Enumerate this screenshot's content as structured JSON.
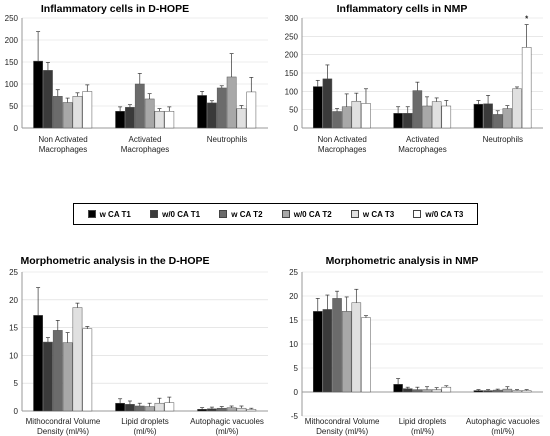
{
  "colors": [
    "#000000",
    "#3a3a3a",
    "#6b6b6b",
    "#a8a8a8",
    "#e0e0e0",
    "#ffffff"
  ],
  "legend": [
    "w CA T1",
    "w/0 CA T1",
    "w CA T2",
    "w/0 CA T2",
    "w CA T3",
    "w/0 CA T3"
  ],
  "chart_data": [
    {
      "type": "bar",
      "title": "Inflammatory cells in D-HOPE",
      "categories": [
        [
          "Non Activated",
          "Macrophages"
        ],
        [
          "Activated",
          "Macrophages"
        ],
        [
          "Neutrophils"
        ]
      ],
      "ylim": [
        0,
        250
      ],
      "yticks": [
        0,
        50,
        100,
        150,
        200,
        250
      ],
      "grid": true,
      "series": [
        {
          "name": "w CA T1",
          "values": [
            152,
            38,
            74
          ],
          "errors": [
            67,
            10,
            9
          ]
        },
        {
          "name": "w/0 CA T1",
          "values": [
            131,
            47,
            57
          ],
          "errors": [
            18,
            6,
            5
          ]
        },
        {
          "name": "w CA T2",
          "values": [
            72,
            100,
            91
          ],
          "errors": [
            15,
            24,
            5
          ]
        },
        {
          "name": "w/0 CA T2",
          "values": [
            58,
            66,
            116
          ],
          "errors": [
            10,
            12,
            53
          ]
        },
        {
          "name": "w CA T3",
          "values": [
            72,
            38,
            44
          ],
          "errors": [
            8,
            6,
            7
          ]
        },
        {
          "name": "w/0 CA T3",
          "values": [
            83,
            38,
            82
          ],
          "errors": [
            15,
            10,
            33
          ]
        }
      ]
    },
    {
      "type": "bar",
      "title": "Inflammatory cells in NMP",
      "categories": [
        [
          "Non Activated",
          "Macrophages"
        ],
        [
          "Activated",
          "Macrophages"
        ],
        [
          "Neutrophils"
        ]
      ],
      "ylim": [
        0,
        300
      ],
      "yticks": [
        0,
        50,
        100,
        150,
        200,
        250,
        300
      ],
      "grid": true,
      "annotation": {
        "text": "*",
        "series": 5,
        "category": 2
      },
      "series": [
        {
          "name": "w CA T1",
          "values": [
            113,
            40,
            65
          ],
          "errors": [
            17,
            18,
            10
          ]
        },
        {
          "name": "w/0 CA T1",
          "values": [
            134,
            40,
            66
          ],
          "errors": [
            38,
            18,
            23
          ]
        },
        {
          "name": "w CA T2",
          "values": [
            45,
            102,
            37
          ],
          "errors": [
            8,
            23,
            10
          ]
        },
        {
          "name": "w/0 CA T2",
          "values": [
            58,
            60,
            53
          ],
          "errors": [
            35,
            25,
            8
          ]
        },
        {
          "name": "w CA T3",
          "values": [
            73,
            72,
            107
          ],
          "errors": [
            22,
            10,
            5
          ]
        },
        {
          "name": "w/0 CA T3",
          "values": [
            67,
            60,
            220
          ],
          "errors": [
            40,
            15,
            62
          ]
        }
      ]
    },
    {
      "type": "bar",
      "title": "Morphometric analysis in the D-HOPE",
      "categories": [
        [
          "Mithocondral Volume",
          "Density (ml/%)"
        ],
        [
          "Lipid droplets",
          "(ml/%)"
        ],
        [
          "Autophagic vacuoles",
          "(ml/%)"
        ]
      ],
      "ylim": [
        0,
        25
      ],
      "yticks": [
        0,
        5,
        10,
        15,
        20,
        25
      ],
      "grid": true,
      "series": [
        {
          "name": "w CA T1",
          "values": [
            17.2,
            1.4,
            0.3
          ],
          "errors": [
            5.0,
            0.8,
            0.3
          ]
        },
        {
          "name": "w/0 CA T1",
          "values": [
            12.4,
            1.2,
            0.4
          ],
          "errors": [
            0.8,
            0.6,
            0.3
          ]
        },
        {
          "name": "w CA T2",
          "values": [
            14.5,
            0.9,
            0.5
          ],
          "errors": [
            1.8,
            0.5,
            0.3
          ]
        },
        {
          "name": "w/0 CA T2",
          "values": [
            12.3,
            0.8,
            0.6
          ],
          "errors": [
            1.8,
            0.6,
            0.3
          ]
        },
        {
          "name": "w CA T3",
          "values": [
            18.6,
            1.4,
            0.5
          ],
          "errors": [
            0.8,
            0.9,
            0.4
          ]
        },
        {
          "name": "w/0 CA T3",
          "values": [
            14.8,
            1.5,
            0.3
          ],
          "errors": [
            0.4,
            1.0,
            0.2
          ]
        }
      ]
    },
    {
      "type": "bar",
      "title": "Morphometric analysis in NMP",
      "categories": [
        [
          "Mithocondral Volume",
          "Density (ml/%)"
        ],
        [
          "Lipid droplets",
          "(ml/%)"
        ],
        [
          "Autophagic vacuoles",
          "(ml/%)"
        ]
      ],
      "ylim": [
        -5,
        25
      ],
      "yticks": [
        -5,
        0,
        5,
        10,
        15,
        20,
        25
      ],
      "grid": true,
      "series": [
        {
          "name": "w CA T1",
          "values": [
            16.8,
            1.6,
            0.3
          ],
          "errors": [
            2.7,
            1.2,
            0.2
          ]
        },
        {
          "name": "w/0 CA T1",
          "values": [
            17.2,
            0.7,
            0.3
          ],
          "errors": [
            3.0,
            0.3,
            0.2
          ]
        },
        {
          "name": "w CA T2",
          "values": [
            19.5,
            0.5,
            0.4
          ],
          "errors": [
            1.5,
            0.5,
            0.2
          ]
        },
        {
          "name": "w/0 CA T2",
          "values": [
            16.8,
            0.5,
            0.6
          ],
          "errors": [
            3.0,
            0.6,
            0.5
          ]
        },
        {
          "name": "w CA T3",
          "values": [
            18.6,
            0.5,
            0.3
          ],
          "errors": [
            2.8,
            0.4,
            0.2
          ]
        },
        {
          "name": "w/0 CA T3",
          "values": [
            15.5,
            1.0,
            0.3
          ],
          "errors": [
            0.4,
            0.3,
            0.2
          ]
        }
      ]
    }
  ]
}
